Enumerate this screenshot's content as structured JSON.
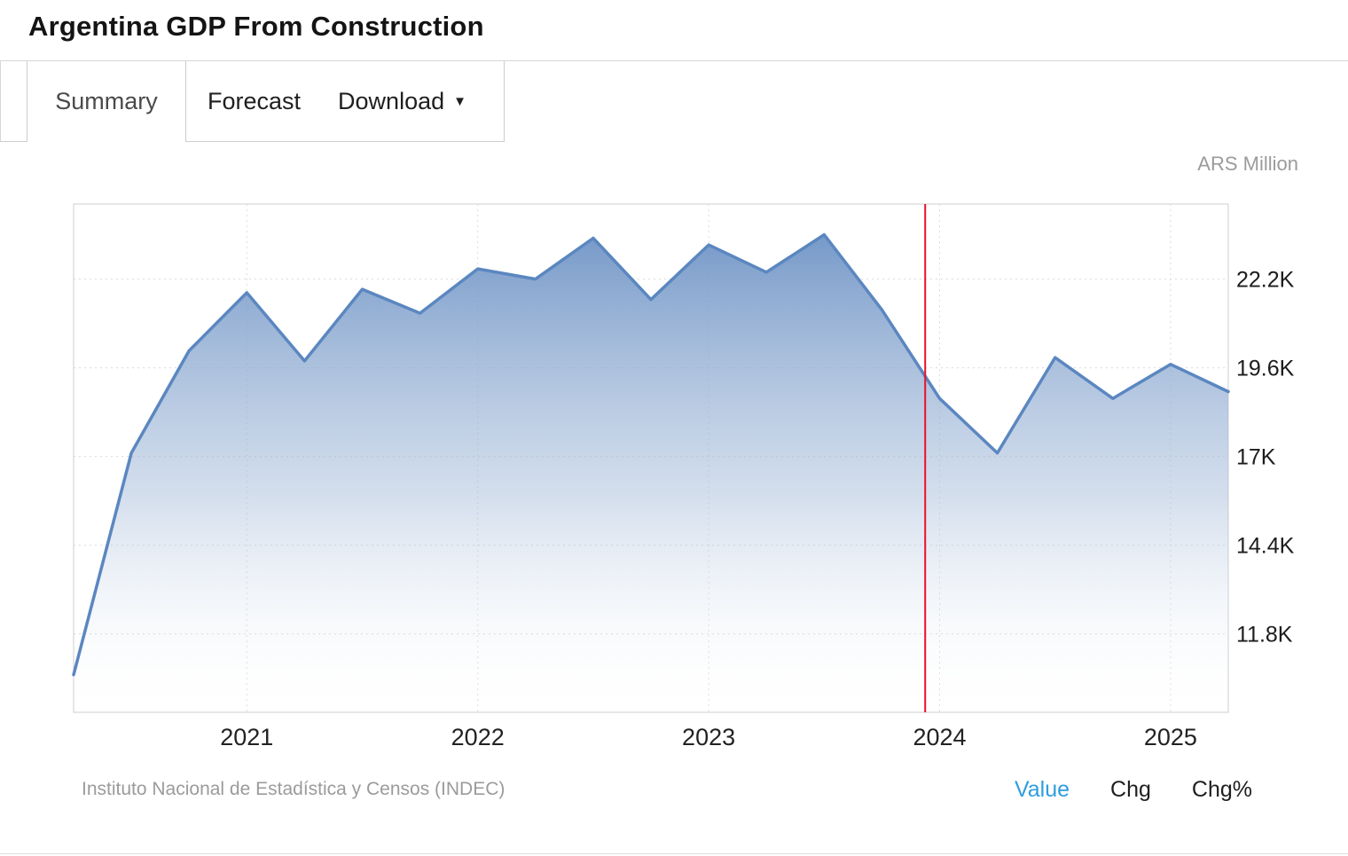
{
  "header": {
    "title": "Argentina GDP From Construction"
  },
  "tabs": {
    "summary": "Summary",
    "forecast": "Forecast",
    "download": "Download"
  },
  "chart": {
    "unit_label": "ARS Million",
    "source_label": "Instituto Nacional de Estadística y Censos (INDEC)",
    "legend": {
      "value": "Value",
      "chg": "Chg",
      "chg_pct": "Chg%"
    },
    "legend_active_color": "#2E9DE0"
  },
  "chart_data": {
    "type": "area",
    "title": "Argentina GDP From Construction",
    "ylabel": "ARS Million",
    "x": [
      "2020-Q2",
      "2020-Q3",
      "2020-Q4",
      "2021-Q1",
      "2021-Q2",
      "2021-Q3",
      "2021-Q4",
      "2022-Q1",
      "2022-Q2",
      "2022-Q3",
      "2022-Q4",
      "2023-Q1",
      "2023-Q2",
      "2023-Q3",
      "2023-Q4",
      "2024-Q1",
      "2024-Q2",
      "2024-Q3",
      "2024-Q4",
      "2025-Q1",
      "2025-Q2"
    ],
    "values": [
      10600,
      17100,
      20100,
      21800,
      19800,
      21900,
      21200,
      22500,
      22200,
      23400,
      21600,
      23200,
      22400,
      23500,
      21300,
      18700,
      17100,
      19900,
      18700,
      19700,
      18900
    ],
    "unit": "ARS Million",
    "ylim": [
      9500,
      24400
    ],
    "yticks": [
      11800,
      14400,
      17000,
      19600,
      22200
    ],
    "ytick_labels": [
      "11.8K",
      "14.4K",
      "17K",
      "19.6K",
      "22.2K"
    ],
    "xtick_years": [
      "2021",
      "2022",
      "2023",
      "2024",
      "2025"
    ],
    "grid": true,
    "legend_position": "bottom-right",
    "line_color": "#5b87c0",
    "area_top_color": "#6f94c6",
    "forecast_divider_index": 14.75,
    "divider_color": "#eb0f29"
  }
}
